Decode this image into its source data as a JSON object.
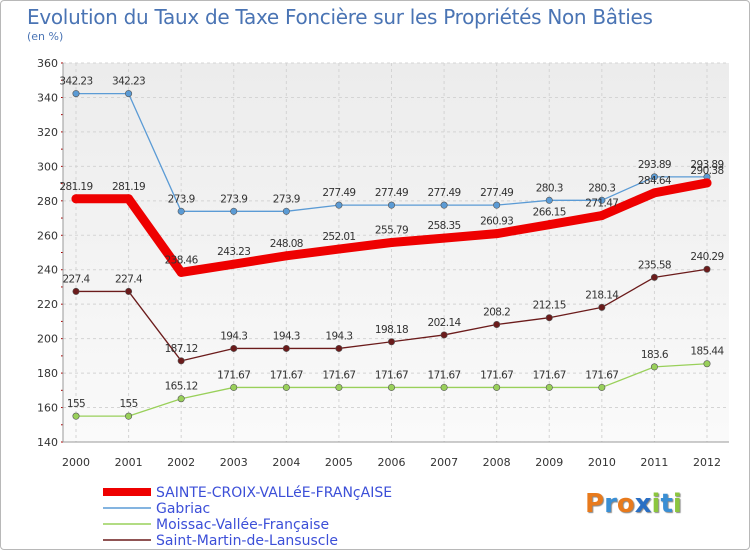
{
  "page": {
    "title": "Evolution du Taux de Taxe Foncière sur les Propriétés Non Bâties",
    "subtitle": "(en %)",
    "logo": {
      "text": "Proxiti",
      "letters": [
        {
          "ch": "P",
          "color": "#e87a1c"
        },
        {
          "ch": "r",
          "color": "#3a8fd4"
        },
        {
          "ch": "o",
          "color": "#e87a1c"
        },
        {
          "ch": "x",
          "color": "#2a6fc4"
        },
        {
          "ch": "i",
          "color": "#8cc63e"
        },
        {
          "ch": "t",
          "color": "#3a8fd4"
        },
        {
          "ch": "i",
          "color": "#8cc63e"
        }
      ]
    }
  },
  "chart_data": {
    "type": "line",
    "title": "Evolution du Taux de Taxe Foncière sur les Propriétés Non Bâties",
    "ylabel": "(en %)",
    "xlabel": "",
    "ylim": [
      140,
      360
    ],
    "yticks": [
      140,
      160,
      180,
      200,
      220,
      240,
      260,
      280,
      300,
      320,
      340,
      360
    ],
    "grid": true,
    "legend_position": "bottom-left",
    "x": [
      "2000",
      "2001",
      "2002",
      "2003",
      "2004",
      "2005",
      "2006",
      "2007",
      "2008",
      "2009",
      "2010",
      "2011",
      "2012"
    ],
    "series": [
      {
        "name": "SAINTE-CROIX-VALLéE-FRANçAISE",
        "color": "#ee0000",
        "values": [
          281.19,
          281.19,
          238.46,
          243.23,
          248.08,
          252.01,
          255.79,
          258.35,
          260.93,
          266.15,
          271.47,
          284.64,
          290.38
        ],
        "labels": [
          "281.19",
          "281.19",
          "238.46",
          "243.23",
          "248.08",
          "252.01",
          "255.79",
          "258.35",
          "260.93",
          "266.15",
          "271.47",
          "284.64",
          "290.38"
        ]
      },
      {
        "name": "Gabriac",
        "color": "#5b9bd5",
        "values": [
          342.23,
          342.23,
          273.9,
          273.9,
          273.9,
          277.49,
          277.49,
          277.49,
          277.49,
          280.3,
          280.3,
          293.89,
          293.89
        ],
        "labels": [
          "342.23",
          "342.23",
          "273.9",
          "273.9",
          "273.9",
          "277.49",
          "277.49",
          "277.49",
          "277.49",
          "280.3",
          "280.3",
          "293.89",
          "293.89"
        ]
      },
      {
        "name": "Moissac-Vallée-Française",
        "color": "#99d05a",
        "values": [
          155,
          155,
          165.12,
          171.67,
          171.67,
          171.67,
          171.67,
          171.67,
          171.67,
          171.67,
          171.67,
          183.6,
          185.44
        ],
        "labels": [
          "155",
          "155",
          "165.12",
          "171.67",
          "171.67",
          "171.67",
          "171.67",
          "171.67",
          "171.67",
          "171.67",
          "171.67",
          "183.6",
          "185.44"
        ]
      },
      {
        "name": "Saint-Martin-de-Lansuscle",
        "color": "#6b1b1b",
        "values": [
          227.4,
          227.4,
          187.12,
          194.3,
          194.3,
          194.3,
          198.18,
          202.14,
          208.2,
          212.15,
          218.14,
          235.58,
          240.29
        ],
        "labels": [
          "227.4",
          "227.4",
          "187.12",
          "194.3",
          "194.3",
          "194.3",
          "198.18",
          "202.14",
          "208.2",
          "212.15",
          "218.14",
          "235.58",
          "240.29"
        ]
      }
    ]
  }
}
